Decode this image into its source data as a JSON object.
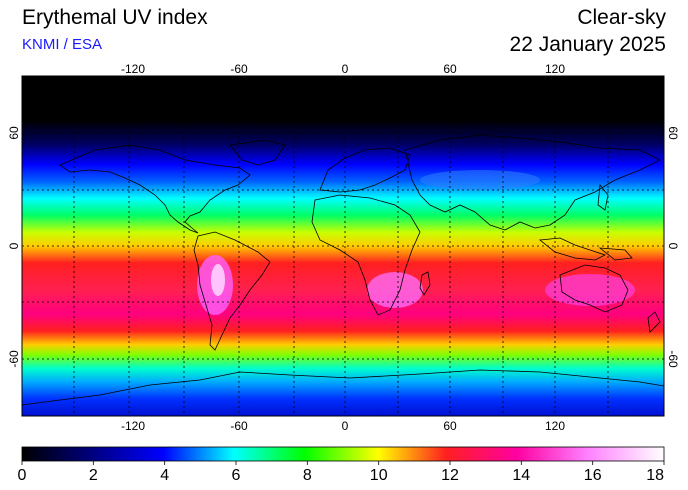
{
  "header": {
    "title": "Erythemal UV index",
    "source": "KNMI / ESA",
    "mode": "Clear-sky",
    "date": "22 January 2025"
  },
  "map": {
    "projection": "equirectangular",
    "lon_range": [
      -180,
      180
    ],
    "lat_range": [
      -90,
      90
    ],
    "grid_step_deg": 30,
    "lon_tick_labels": [
      "-120",
      "-60",
      "0",
      "60",
      "120"
    ],
    "lat_tick_labels": [
      "60",
      "0",
      "-60"
    ]
  },
  "colorbar": {
    "min": 0,
    "max": 18,
    "tick_labels": [
      "0",
      "2",
      "4",
      "6",
      "8",
      "10",
      "12",
      "14",
      "16",
      "18"
    ],
    "colors": [
      "#000000",
      "#0000ff",
      "#00ffff",
      "#00ff00",
      "#ffff00",
      "#ff0000",
      "#ff00ff",
      "#ffffff"
    ]
  },
  "uv_band_colors": {
    "polar_night": "#000000",
    "north_mid": "#0000ff",
    "north_subtropic": "#00ffff",
    "north_tropic": "#00ff66",
    "tropic_edge": "#ffcc00",
    "equatorial": "#ff2020",
    "southern_peak": "#ff00ff",
    "southern_ocean": "#00e0ff",
    "antarctica": "#0040ff"
  }
}
